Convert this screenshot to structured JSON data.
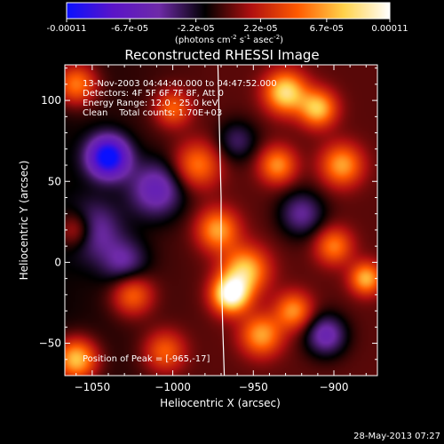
{
  "colorbar": {
    "tick_labels": [
      "-0.00011",
      "-6.7e-05",
      "-2.2e-05",
      "2.2e-05",
      "6.7e-05",
      "0.00011"
    ],
    "range": [
      -0.00011,
      0.00011
    ],
    "units_parts": [
      "(photons cm",
      "-2",
      " s",
      "-1",
      " asec",
      "-2",
      ")"
    ],
    "gradient": [
      "#0a10ff",
      "#5a14c8",
      "#6e2aa8",
      "#000000",
      "#b01010",
      "#ff5a00",
      "#ffd24a",
      "#ffffff"
    ]
  },
  "chart_data": {
    "type": "heatmap",
    "title": "Reconstructed RHESSI Image",
    "xlabel": "Heliocentric X (arcsec)",
    "ylabel": "Heliocentric Y (arcsec)",
    "xlim": [
      -1067,
      -873
    ],
    "ylim": [
      -70,
      122
    ],
    "x_ticks": [
      -1050,
      -1000,
      -950,
      -900
    ],
    "y_ticks": [
      -50,
      0,
      50,
      100
    ],
    "annotations": [
      "13-Nov-2003 04:44:40.000 to 04:47:52.000",
      "Detectors: 4F 5F 6F 7F 8F, Att 0",
      "Energy Range: 12.0 - 25.0 keV",
      "Clean    Total counts: 1.70E+03"
    ],
    "peak_label": "Position of Peak = [-965,-17]",
    "peak_position": [
      -965,
      -17
    ],
    "limb": [
      [
        -972,
        122
      ],
      [
        -971,
        80
      ],
      [
        -970,
        40
      ],
      [
        -970,
        0
      ],
      [
        -969,
        -40
      ],
      [
        -968,
        -70
      ]
    ],
    "sources": [
      {
        "x": -964,
        "y": -20,
        "amp": 1.0,
        "sigma": 8
      },
      {
        "x": -955,
        "y": -5,
        "amp": 0.7,
        "sigma": 10
      },
      {
        "x": -972,
        "y": 20,
        "amp": 0.6,
        "sigma": 9
      },
      {
        "x": -930,
        "y": 105,
        "amp": 0.8,
        "sigma": 9
      },
      {
        "x": -910,
        "y": 95,
        "amp": 0.7,
        "sigma": 8
      },
      {
        "x": -895,
        "y": 60,
        "amp": 0.6,
        "sigma": 9
      },
      {
        "x": -935,
        "y": 60,
        "amp": 0.55,
        "sigma": 8
      },
      {
        "x": -985,
        "y": 60,
        "amp": 0.5,
        "sigma": 10
      },
      {
        "x": -1000,
        "y": 95,
        "amp": 0.45,
        "sigma": 8
      },
      {
        "x": -1060,
        "y": 110,
        "amp": 0.6,
        "sigma": 9
      },
      {
        "x": -1060,
        "y": 20,
        "amp": 0.45,
        "sigma": 8
      },
      {
        "x": -1025,
        "y": -20,
        "amp": 0.5,
        "sigma": 9
      },
      {
        "x": -1060,
        "y": -60,
        "amp": 0.8,
        "sigma": 9
      },
      {
        "x": -1005,
        "y": -55,
        "amp": 0.45,
        "sigma": 9
      },
      {
        "x": -945,
        "y": -45,
        "amp": 0.6,
        "sigma": 9
      },
      {
        "x": -925,
        "y": -30,
        "amp": 0.55,
        "sigma": 8
      },
      {
        "x": -900,
        "y": 10,
        "amp": 0.5,
        "sigma": 8
      },
      {
        "x": -880,
        "y": -10,
        "amp": 0.65,
        "sigma": 7
      },
      {
        "x": -1040,
        "y": 65,
        "amp": -1.0,
        "sigma": 9
      },
      {
        "x": -1010,
        "y": 45,
        "amp": -0.5,
        "sigma": 12
      },
      {
        "x": -1050,
        "y": 20,
        "amp": -0.4,
        "sigma": 12
      },
      {
        "x": -1030,
        "y": 0,
        "amp": -0.35,
        "sigma": 10
      },
      {
        "x": -905,
        "y": -45,
        "amp": -0.5,
        "sigma": 9
      },
      {
        "x": -920,
        "y": 30,
        "amp": -0.4,
        "sigma": 10
      },
      {
        "x": -960,
        "y": 75,
        "amp": -0.3,
        "sigma": 9
      }
    ],
    "grid": false,
    "legend": "none"
  },
  "footer": {
    "timestamp": "28-May-2013 07:27"
  }
}
